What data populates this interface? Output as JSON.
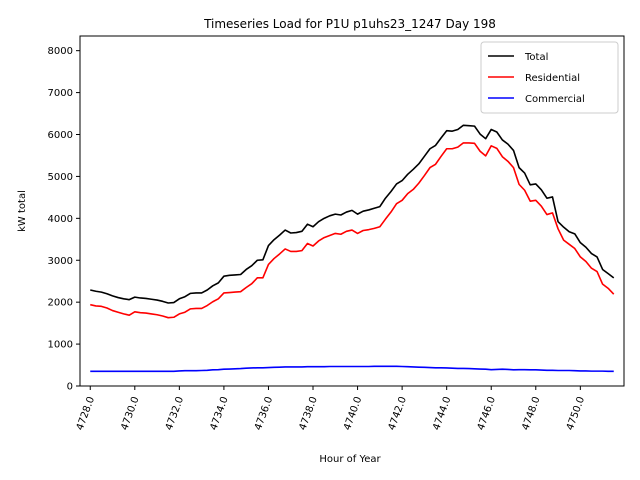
{
  "chart_data": {
    "type": "line",
    "title": "Timeseries Load for P1U p1uhs23_1247  Day 198",
    "xlabel": "Hour of Year",
    "ylabel": "kW total",
    "xlim": [
      4727.54,
      4751.96
    ],
    "ylim": [
      0,
      8350
    ],
    "xticks": [
      4728,
      4730,
      4732,
      4734,
      4736,
      4738,
      4740,
      4742,
      4744,
      4746,
      4748,
      4750
    ],
    "xtick_labels": [
      "4728.0",
      "4730.0",
      "4732.0",
      "4734.0",
      "4736.0",
      "4738.0",
      "4740.0",
      "4742.0",
      "4744.0",
      "4746.0",
      "4748.0",
      "4750.0"
    ],
    "yticks": [
      0,
      1000,
      2000,
      3000,
      4000,
      5000,
      6000,
      7000,
      8000
    ],
    "ytick_labels": [
      "0",
      "1000",
      "2000",
      "3000",
      "4000",
      "5000",
      "6000",
      "7000",
      "8000"
    ],
    "grid": false,
    "legend_position": "top-right",
    "x": [
      4728.0,
      4728.25,
      4728.5,
      4728.75,
      4729.0,
      4729.25,
      4729.5,
      4729.75,
      4730.0,
      4730.25,
      4730.5,
      4730.75,
      4731.0,
      4731.25,
      4731.5,
      4731.75,
      4732.0,
      4732.25,
      4732.5,
      4732.75,
      4733.0,
      4733.25,
      4733.5,
      4733.75,
      4734.0,
      4734.25,
      4734.5,
      4734.75,
      4735.0,
      4735.25,
      4735.5,
      4735.75,
      4736.0,
      4736.25,
      4736.5,
      4736.75,
      4737.0,
      4737.25,
      4737.5,
      4737.75,
      4738.0,
      4738.25,
      4738.5,
      4738.75,
      4739.0,
      4739.25,
      4739.5,
      4739.75,
      4740.0,
      4740.25,
      4740.5,
      4740.75,
      4741.0,
      4741.25,
      4741.5,
      4741.75,
      4742.0,
      4742.25,
      4742.5,
      4742.75,
      4743.0,
      4743.25,
      4743.5,
      4743.75,
      4744.0,
      4744.25,
      4744.5,
      4744.75,
      4745.0,
      4745.25,
      4745.5,
      4745.75,
      4746.0,
      4746.25,
      4746.5,
      4746.75,
      4747.0,
      4747.25,
      4747.5,
      4747.75,
      4748.0,
      4748.25,
      4748.5,
      4748.75,
      4749.0,
      4749.25,
      4749.5,
      4749.75,
      4750.0,
      4750.25,
      4750.5,
      4750.75,
      4751.0,
      4751.25,
      4751.5
    ],
    "series": [
      {
        "name": "Total",
        "color": "#000000",
        "values": [
          2290,
          2260,
          2240,
          2200,
          2150,
          2110,
          2080,
          2060,
          2120,
          2100,
          2090,
          2070,
          2050,
          2020,
          1980,
          1990,
          2080,
          2130,
          2210,
          2220,
          2220,
          2290,
          2390,
          2460,
          2620,
          2640,
          2650,
          2660,
          2780,
          2870,
          3000,
          3010,
          3350,
          3490,
          3600,
          3720,
          3650,
          3660,
          3690,
          3860,
          3800,
          3920,
          4000,
          4060,
          4100,
          4080,
          4150,
          4190,
          4100,
          4170,
          4200,
          4240,
          4280,
          4480,
          4640,
          4820,
          4900,
          5050,
          5170,
          5300,
          5480,
          5660,
          5740,
          5920,
          6090,
          6080,
          6120,
          6220,
          6210,
          6200,
          6010,
          5900,
          6120,
          6060,
          5870,
          5770,
          5620,
          5210,
          5080,
          4800,
          4820,
          4680,
          4480,
          4510,
          3920,
          3790,
          3680,
          3630,
          3420,
          3310,
          3160,
          3080,
          2780,
          2680,
          2580
        ]
      },
      {
        "name": "Residential",
        "color": "#ff0000",
        "values": [
          1940,
          1910,
          1900,
          1860,
          1800,
          1760,
          1720,
          1690,
          1770,
          1750,
          1740,
          1720,
          1700,
          1670,
          1630,
          1640,
          1720,
          1760,
          1840,
          1850,
          1850,
          1920,
          2010,
          2080,
          2220,
          2230,
          2240,
          2250,
          2350,
          2440,
          2580,
          2580,
          2900,
          3040,
          3150,
          3270,
          3210,
          3210,
          3230,
          3400,
          3340,
          3460,
          3540,
          3590,
          3640,
          3620,
          3690,
          3720,
          3640,
          3710,
          3730,
          3760,
          3800,
          3980,
          4150,
          4350,
          4430,
          4590,
          4690,
          4840,
          5020,
          5210,
          5290,
          5480,
          5660,
          5660,
          5700,
          5800,
          5800,
          5790,
          5600,
          5490,
          5730,
          5670,
          5470,
          5360,
          5210,
          4810,
          4670,
          4410,
          4430,
          4290,
          4090,
          4130,
          3750,
          3480,
          3380,
          3280,
          3080,
          2970,
          2810,
          2730,
          2430,
          2330,
          2190
        ]
      },
      {
        "name": "Commercial",
        "color": "#0000ff",
        "values": [
          350,
          350,
          350,
          350,
          350,
          350,
          350,
          350,
          350,
          350,
          350,
          350,
          350,
          350,
          350,
          350,
          360,
          365,
          365,
          365,
          370,
          375,
          385,
          390,
          400,
          405,
          410,
          415,
          425,
          430,
          435,
          435,
          440,
          445,
          450,
          455,
          455,
          455,
          455,
          460,
          460,
          460,
          460,
          465,
          465,
          465,
          465,
          465,
          465,
          465,
          465,
          470,
          470,
          470,
          470,
          470,
          465,
          460,
          455,
          450,
          445,
          440,
          435,
          435,
          430,
          425,
          420,
          420,
          415,
          410,
          405,
          400,
          390,
          395,
          400,
          395,
          385,
          390,
          390,
          385,
          385,
          380,
          375,
          375,
          370,
          370,
          370,
          365,
          360,
          360,
          355,
          355,
          355,
          350,
          350
        ]
      }
    ]
  }
}
